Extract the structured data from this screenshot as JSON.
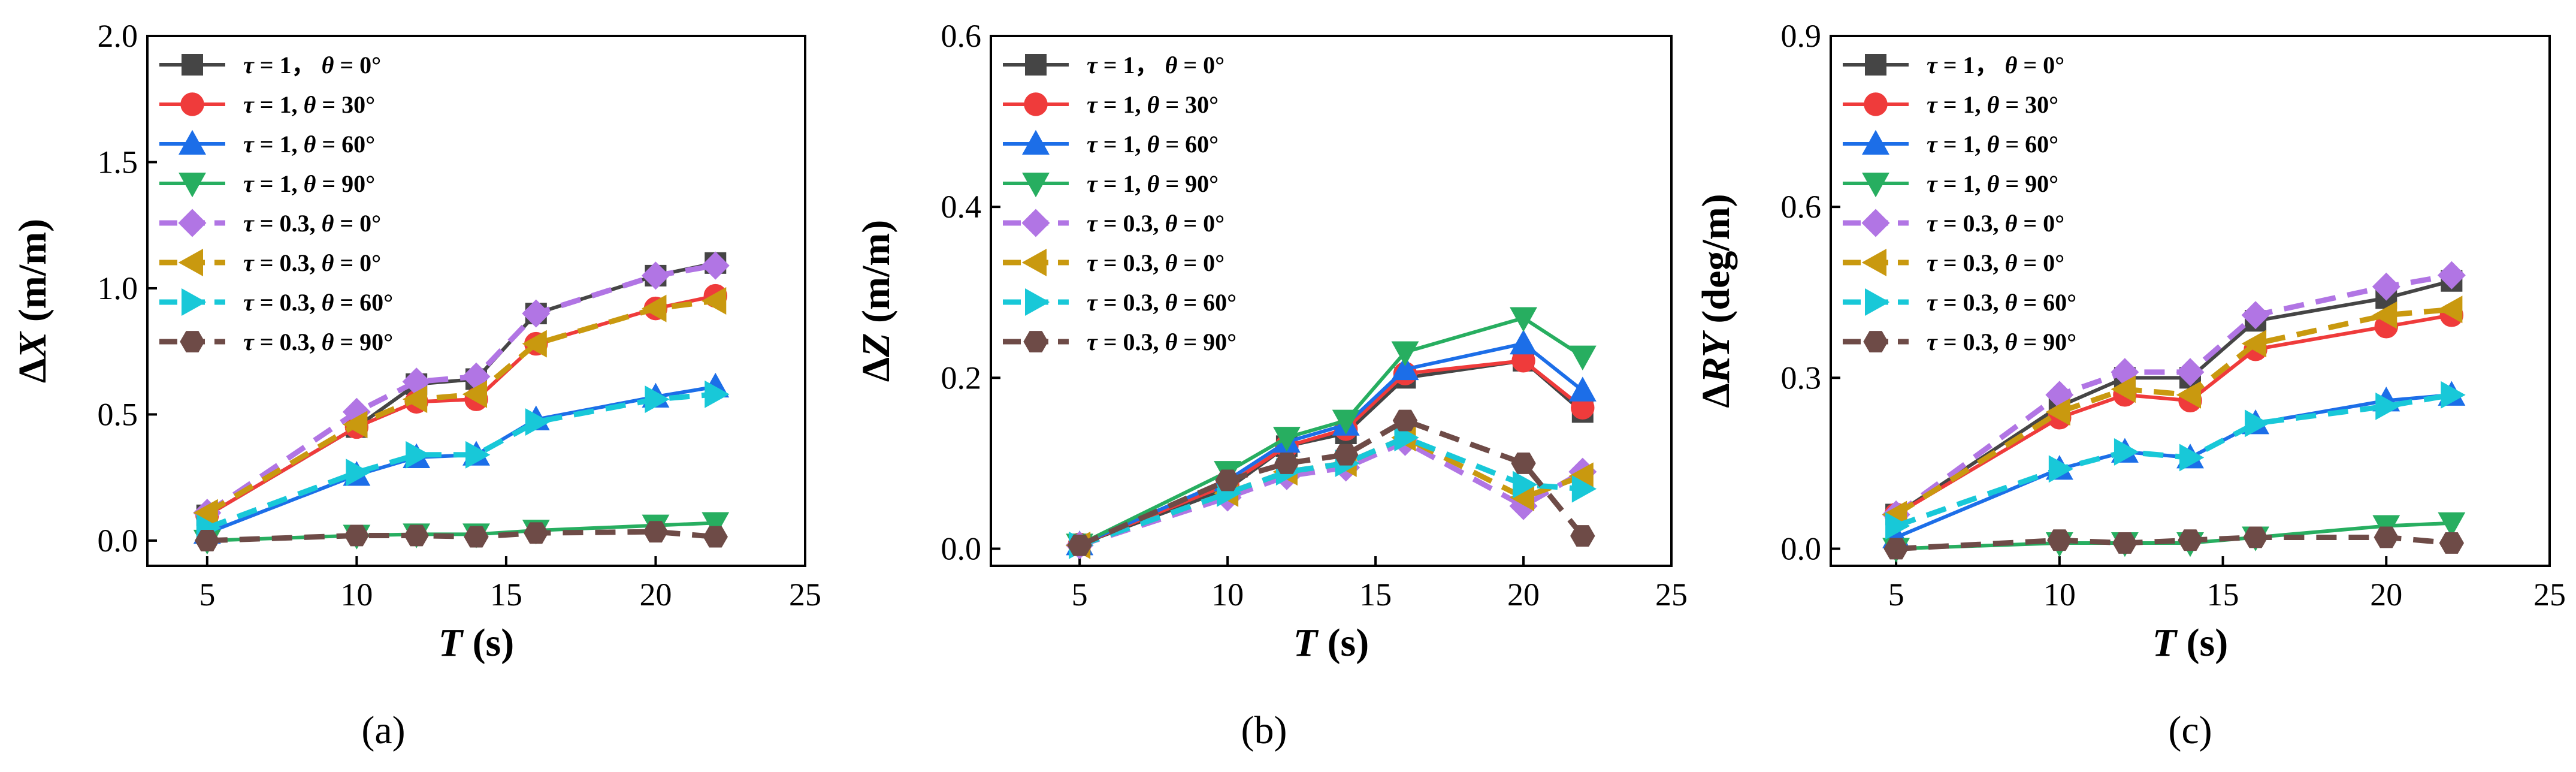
{
  "figure": {
    "panel_labels_note": "three panels (a) (b) (c)"
  },
  "chart_data": [
    {
      "type": "line",
      "panel_label": "(a)",
      "panel_letter": "a",
      "xlabel": "T",
      "xunit": " (s)",
      "ylabel_prefix": "Δ",
      "ylabel_var": "X",
      "ylabel_unit": " (m/m)",
      "xlim": [
        3,
        25
      ],
      "ylim": [
        -0.1,
        2.0
      ],
      "xticks": [
        5,
        10,
        15,
        20,
        25
      ],
      "yticks": [
        0.0,
        0.5,
        1.0,
        1.5,
        2.0
      ],
      "ytick_labels": [
        "0.0",
        "0.5",
        "1.0",
        "1.5",
        "2.0"
      ],
      "legend_location": "top-left",
      "x": [
        5,
        10,
        12,
        14,
        16,
        20,
        22
      ],
      "series": [
        {
          "name": "τ = 1，  θ = 0°",
          "tau": "1，",
          "theta": "0°",
          "color": "#454545",
          "marker": "square",
          "dashed": false,
          "values": [
            0.1,
            0.45,
            0.62,
            0.64,
            0.9,
            1.05,
            1.1
          ]
        },
        {
          "name": "τ = 1, θ = 30°",
          "tau": "1,",
          "theta": "30°",
          "color": "#ef3b3b",
          "marker": "circle",
          "dashed": false,
          "values": [
            0.1,
            0.45,
            0.55,
            0.56,
            0.78,
            0.92,
            0.97
          ]
        },
        {
          "name": "τ = 1, θ = 60°",
          "tau": "1,",
          "theta": "60°",
          "color": "#1c6ee8",
          "marker": "triangle-up",
          "dashed": false,
          "values": [
            0.03,
            0.26,
            0.33,
            0.34,
            0.48,
            0.57,
            0.61
          ]
        },
        {
          "name": "τ = 1, θ = 90°",
          "tau": "1,",
          "theta": "90°",
          "color": "#27ae60",
          "marker": "triangle-down",
          "dashed": false,
          "values": [
            0.0,
            0.02,
            0.025,
            0.025,
            0.04,
            0.06,
            0.07
          ]
        },
        {
          "name": "τ = 0.3, θ = 0°",
          "tau": "0.3,",
          "theta": "0°",
          "color": "#b175e4",
          "marker": "diamond",
          "dashed": true,
          "values": [
            0.11,
            0.51,
            0.63,
            0.65,
            0.9,
            1.05,
            1.09
          ]
        },
        {
          "name": "τ = 0.3, θ = 0°",
          "tau": "0.3,",
          "theta": "0°",
          "color": "#c9990f",
          "marker": "triangle-left",
          "dashed": true,
          "values": [
            0.11,
            0.46,
            0.56,
            0.58,
            0.78,
            0.92,
            0.95
          ]
        },
        {
          "name": "τ = 0.3, θ = 60°",
          "tau": "0.3,",
          "theta": "60°",
          "color": "#18c8d8",
          "marker": "triangle-right",
          "dashed": true,
          "values": [
            0.05,
            0.27,
            0.34,
            0.34,
            0.47,
            0.56,
            0.58
          ]
        },
        {
          "name": "τ = 0.3, θ = 90°",
          "tau": "0.3,",
          "theta": "90°",
          "color": "#6e4b47",
          "marker": "hexagon",
          "dashed": true,
          "values": [
            0.0,
            0.02,
            0.02,
            0.015,
            0.03,
            0.035,
            0.015
          ]
        }
      ]
    },
    {
      "type": "line",
      "panel_label": "(b)",
      "panel_letter": "b",
      "xlabel": "T",
      "xunit": " (s)",
      "ylabel_prefix": "Δ",
      "ylabel_var": "Z",
      "ylabel_unit": " (m/m)",
      "xlim": [
        2,
        25
      ],
      "ylim": [
        -0.02,
        0.6
      ],
      "xticks": [
        5,
        10,
        15,
        20,
        25
      ],
      "yticks": [
        0.0,
        0.2,
        0.4,
        0.6
      ],
      "ytick_labels": [
        "0.0",
        "0.2",
        "0.4",
        "0.6"
      ],
      "legend_location": "top-left",
      "x": [
        5,
        10,
        12,
        14,
        16,
        20,
        22
      ],
      "series": [
        {
          "name": "τ = 1，  θ = 0°",
          "tau": "1，",
          "theta": "0°",
          "color": "#454545",
          "marker": "square",
          "dashed": false,
          "values": [
            0.005,
            0.07,
            0.12,
            0.135,
            0.2,
            0.22,
            0.16
          ]
        },
        {
          "name": "τ = 1, θ = 30°",
          "tau": "1,",
          "theta": "30°",
          "color": "#ef3b3b",
          "marker": "circle",
          "dashed": false,
          "values": [
            0.005,
            0.075,
            0.12,
            0.14,
            0.205,
            0.22,
            0.165
          ]
        },
        {
          "name": "τ = 1, θ = 60°",
          "tau": "1,",
          "theta": "60°",
          "color": "#1c6ee8",
          "marker": "triangle-up",
          "dashed": false,
          "values": [
            0.005,
            0.08,
            0.125,
            0.145,
            0.21,
            0.24,
            0.185
          ]
        },
        {
          "name": "τ = 1, θ = 90°",
          "tau": "1,",
          "theta": "90°",
          "color": "#27ae60",
          "marker": "triangle-down",
          "dashed": false,
          "values": [
            0.005,
            0.09,
            0.13,
            0.15,
            0.23,
            0.27,
            0.225
          ]
        },
        {
          "name": "τ = 0.3, θ = 0°",
          "tau": "0.3,",
          "theta": "0°",
          "color": "#b175e4",
          "marker": "diamond",
          "dashed": true,
          "values": [
            0.004,
            0.06,
            0.085,
            0.095,
            0.125,
            0.05,
            0.09
          ]
        },
        {
          "name": "τ = 0.3, θ = 0°",
          "tau": "0.3,",
          "theta": "0°",
          "color": "#c9990f",
          "marker": "triangle-left",
          "dashed": true,
          "values": [
            0.004,
            0.065,
            0.09,
            0.1,
            0.13,
            0.06,
            0.085
          ]
        },
        {
          "name": "τ = 0.3, θ = 60°",
          "tau": "0.3,",
          "theta": "60°",
          "color": "#18c8d8",
          "marker": "triangle-right",
          "dashed": true,
          "values": [
            0.004,
            0.065,
            0.09,
            0.1,
            0.13,
            0.075,
            0.07
          ]
        },
        {
          "name": "τ = 0.3, θ = 90°",
          "tau": "0.3,",
          "theta": "90°",
          "color": "#6e4b47",
          "marker": "hexagon",
          "dashed": true,
          "values": [
            0.004,
            0.08,
            0.1,
            0.11,
            0.15,
            0.1,
            0.015
          ]
        }
      ]
    },
    {
      "type": "line",
      "panel_label": "(c)",
      "panel_letter": "c",
      "xlabel": "T",
      "xunit": " (s)",
      "ylabel_prefix": "Δ",
      "ylabel_var": "RY",
      "ylabel_unit": " (deg/m)",
      "xlim": [
        3,
        25
      ],
      "ylim": [
        -0.03,
        0.9
      ],
      "xticks": [
        5,
        10,
        15,
        20,
        25
      ],
      "yticks": [
        0.0,
        0.3,
        0.6,
        0.9
      ],
      "ytick_labels": [
        "0.0",
        "0.3",
        "0.6",
        "0.9"
      ],
      "legend_location": "top-left",
      "x": [
        5,
        10,
        12,
        14,
        16,
        20,
        22
      ],
      "series": [
        {
          "name": "τ = 1，  θ = 0°",
          "tau": "1，",
          "theta": "0°",
          "color": "#454545",
          "marker": "square",
          "dashed": false,
          "values": [
            0.06,
            0.25,
            0.3,
            0.3,
            0.4,
            0.44,
            0.47
          ]
        },
        {
          "name": "τ = 1, θ = 30°",
          "tau": "1,",
          "theta": "30°",
          "color": "#ef3b3b",
          "marker": "circle",
          "dashed": false,
          "values": [
            0.06,
            0.23,
            0.27,
            0.26,
            0.35,
            0.39,
            0.41
          ]
        },
        {
          "name": "τ = 1, θ = 60°",
          "tau": "1,",
          "theta": "60°",
          "color": "#1c6ee8",
          "marker": "triangle-up",
          "dashed": false,
          "values": [
            0.02,
            0.14,
            0.17,
            0.16,
            0.22,
            0.26,
            0.27
          ]
        },
        {
          "name": "τ = 1, θ = 90°",
          "tau": "1,",
          "theta": "90°",
          "color": "#27ae60",
          "marker": "triangle-down",
          "dashed": false,
          "values": [
            0.0,
            0.01,
            0.01,
            0.01,
            0.02,
            0.04,
            0.045
          ]
        },
        {
          "name": "τ = 0.3, θ = 0°",
          "tau": "0.3,",
          "theta": "0°",
          "color": "#b175e4",
          "marker": "diamond",
          "dashed": true,
          "values": [
            0.06,
            0.27,
            0.31,
            0.31,
            0.41,
            0.46,
            0.48
          ]
        },
        {
          "name": "τ = 0.3, θ = 0°",
          "tau": "0.3,",
          "theta": "0°",
          "color": "#c9990f",
          "marker": "triangle-left",
          "dashed": true,
          "values": [
            0.06,
            0.24,
            0.28,
            0.27,
            0.36,
            0.41,
            0.42
          ]
        },
        {
          "name": "τ = 0.3, θ = 60°",
          "tau": "0.3,",
          "theta": "60°",
          "color": "#18c8d8",
          "marker": "triangle-right",
          "dashed": true,
          "values": [
            0.04,
            0.14,
            0.17,
            0.16,
            0.22,
            0.25,
            0.27
          ]
        },
        {
          "name": "τ = 0.3, θ = 90°",
          "tau": "0.3,",
          "theta": "90°",
          "color": "#6e4b47",
          "marker": "hexagon",
          "dashed": true,
          "values": [
            0.0,
            0.015,
            0.01,
            0.015,
            0.02,
            0.02,
            0.01
          ]
        }
      ]
    }
  ]
}
